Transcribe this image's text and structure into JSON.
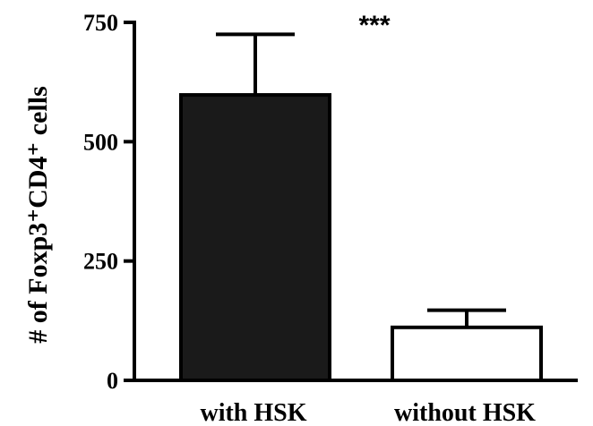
{
  "chart_data": {
    "type": "bar",
    "categories": [
      "with HSK",
      "without HSK"
    ],
    "values": [
      598,
      111
    ],
    "error_upper": [
      725,
      147
    ],
    "bar_fills": [
      "#1a1a1a",
      "#ffffff"
    ],
    "ylabel": "# of Foxp3⁺CD4⁺ cells",
    "ylim": [
      0,
      750
    ],
    "yticks": [
      0,
      250,
      500,
      750
    ],
    "annotation": "***",
    "grid": false
  }
}
